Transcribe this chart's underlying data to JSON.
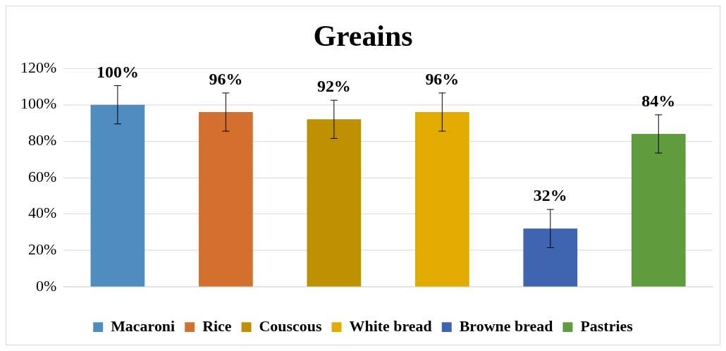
{
  "chart_data": {
    "type": "bar",
    "title": "Greains",
    "categories": [
      null,
      null,
      null,
      null,
      null,
      null
    ],
    "series": [
      {
        "name": "Macaroni",
        "color": "#4f8cc0",
        "values": [
          100,
          null,
          null,
          null,
          null,
          null
        ],
        "errors": [
          10.5,
          null,
          null,
          null,
          null,
          null
        ],
        "value_labels": [
          "100%",
          null,
          null,
          null,
          null,
          null
        ]
      },
      {
        "name": "Rice",
        "color": "#d3702e",
        "values": [
          null,
          96,
          null,
          null,
          null,
          null
        ],
        "errors": [
          null,
          10.5,
          null,
          null,
          null,
          null
        ],
        "value_labels": [
          null,
          "96%",
          null,
          null,
          null,
          null
        ]
      },
      {
        "name": "Couscous",
        "color": "#be9000",
        "values": [
          null,
          null,
          92,
          null,
          null,
          null
        ],
        "errors": [
          null,
          null,
          10.5,
          null,
          null,
          null
        ],
        "value_labels": [
          null,
          null,
          "92%",
          null,
          null,
          null
        ]
      },
      {
        "name": "White bread",
        "color": "#e3aa00",
        "values": [
          null,
          null,
          null,
          96,
          null,
          null
        ],
        "errors": [
          null,
          null,
          null,
          10.5,
          null,
          null
        ],
        "value_labels": [
          null,
          null,
          null,
          "96%",
          null,
          null
        ]
      },
      {
        "name": "Browne bread",
        "color": "#3f65b0",
        "values": [
          null,
          null,
          null,
          null,
          32,
          null
        ],
        "errors": [
          null,
          null,
          null,
          null,
          10.5,
          null
        ],
        "value_labels": [
          null,
          null,
          null,
          null,
          "32%",
          null
        ]
      },
      {
        "name": "Pastries",
        "color": "#609b3e",
        "values": [
          null,
          null,
          null,
          null,
          null,
          84
        ],
        "errors": [
          null,
          null,
          null,
          null,
          null,
          10.5
        ],
        "value_labels": [
          null,
          null,
          null,
          null,
          null,
          "84%"
        ]
      }
    ],
    "ylim": [
      0,
      120
    ],
    "yticks": [
      {
        "value": 0,
        "label": "0%"
      },
      {
        "value": 20,
        "label": "20%"
      },
      {
        "value": 40,
        "label": "40%"
      },
      {
        "value": 60,
        "label": "60%"
      },
      {
        "value": 80,
        "label": "80%"
      },
      {
        "value": 100,
        "label": "100%"
      },
      {
        "value": 120,
        "label": "120%"
      }
    ],
    "grid": "y",
    "legend": "bottom"
  }
}
